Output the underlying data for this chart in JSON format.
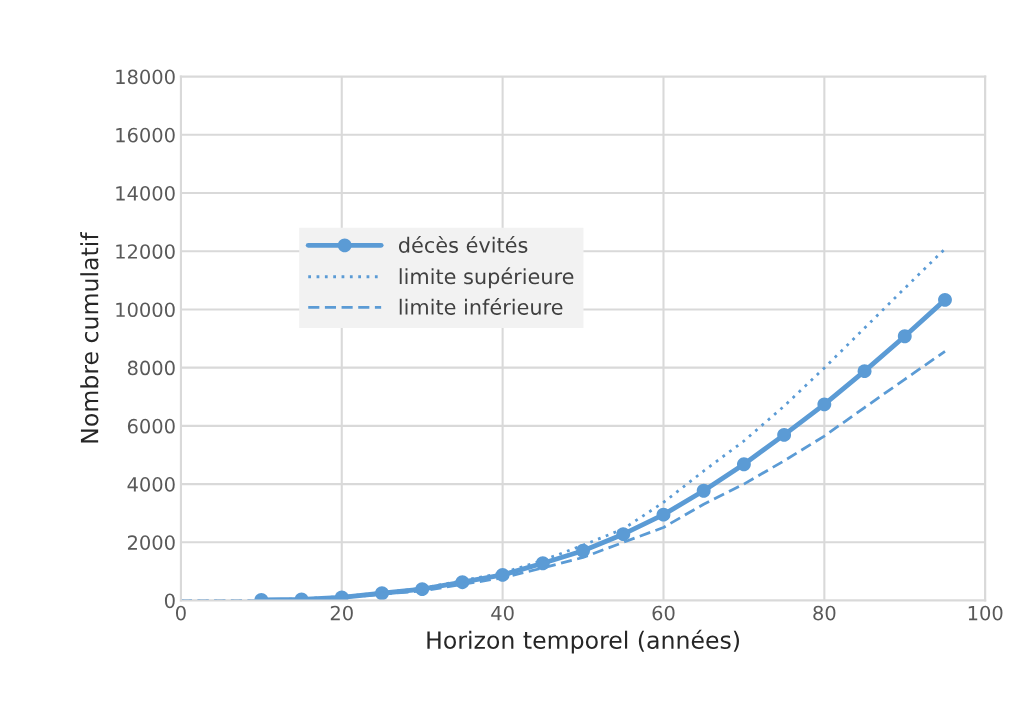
{
  "chart_data": {
    "type": "line",
    "xlabel": "Horizon temporel (années)",
    "ylabel": "Nombre cumulatif",
    "xlim": [
      0,
      100
    ],
    "xticks": [
      0,
      20,
      40,
      60,
      80,
      100
    ],
    "ylim": [
      0,
      18000
    ],
    "yticks": [
      0,
      2000,
      4000,
      6000,
      8000,
      10000,
      12000,
      14000,
      16000,
      18000
    ],
    "grid": true,
    "legend": "upper left",
    "series": [
      {
        "name": "décès évités",
        "color": "#5b9bd5",
        "marker": "circle",
        "line_style": "solid",
        "x": [
          10,
          15,
          20,
          25,
          30,
          35,
          40,
          45,
          50,
          55,
          60,
          65,
          70,
          75,
          80,
          85,
          90,
          95
        ],
        "values": [
          20,
          40,
          110,
          250,
          390,
          630,
          880,
          1280,
          1710,
          2280,
          2950,
          3770,
          4680,
          5690,
          6740,
          7880,
          9080,
          10330
        ]
      },
      {
        "name": "limite supérieure",
        "color": "#5b9bd5",
        "marker": "none",
        "line_style": "dotted",
        "x": [
          0,
          10,
          20,
          30,
          40,
          45,
          50,
          55,
          60,
          65,
          70,
          75,
          80,
          85,
          90,
          95
        ],
        "values": [
          0,
          0,
          130,
          420,
          950,
          1380,
          1900,
          2460,
          3370,
          4450,
          5480,
          6680,
          7990,
          9360,
          10730,
          12080
        ]
      },
      {
        "name": "limite inférieure",
        "color": "#5b9bd5",
        "marker": "none",
        "line_style": "dashed",
        "x": [
          0,
          10,
          20,
          30,
          40,
          45,
          50,
          55,
          60,
          65,
          70,
          75,
          80,
          85,
          90,
          95
        ],
        "values": [
          0,
          0,
          100,
          330,
          780,
          1120,
          1480,
          2000,
          2510,
          3310,
          4000,
          4800,
          5650,
          6630,
          7600,
          8560
        ]
      }
    ]
  }
}
